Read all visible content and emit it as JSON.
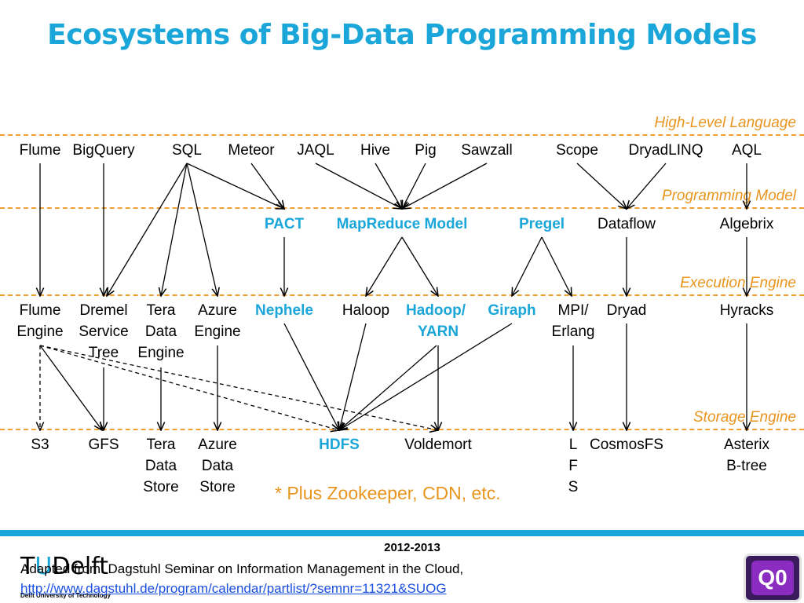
{
  "title": "Ecosystems of Big-Data Programming Models",
  "layers": {
    "high_level": "High-Level Language",
    "programming_model": "Programming Model",
    "execution_engine": "Execution Engine",
    "storage_engine": "Storage Engine"
  },
  "languages": {
    "flume": "Flume",
    "bigquery": "BigQuery",
    "sql": "SQL",
    "meteor": "Meteor",
    "jaql": "JAQL",
    "hive": "Hive",
    "pig": "Pig",
    "sawzall": "Sawzall",
    "scope": "Scope",
    "dryadlinq": "DryadLINQ",
    "aql": "AQL"
  },
  "models": {
    "pact": "PACT",
    "mapreduce": "MapReduce Model",
    "pregel": "Pregel",
    "dataflow": "Dataflow",
    "algebrix": "Algebrix"
  },
  "engines": {
    "flume_engine": [
      "Flume",
      "Engine"
    ],
    "dremel": [
      "Dremel",
      "Service",
      "Tree"
    ],
    "tera_data_engine": [
      "Tera",
      "Data",
      "Engine"
    ],
    "azure_engine": [
      "Azure",
      "Engine"
    ],
    "nephele": "Nephele",
    "haloop": "Haloop",
    "hadoop_yarn": [
      "Hadoop/",
      "YARN"
    ],
    "giraph": "Giraph",
    "mpi_erlang": [
      "MPI/",
      "Erlang"
    ],
    "dryad": "Dryad",
    "hyracks": "Hyracks"
  },
  "storage": {
    "s3": "S3",
    "gfs": "GFS",
    "tera_data_store": [
      "Tera",
      "Data",
      "Store"
    ],
    "azure_data_store": [
      "Azure",
      "Data",
      "Store"
    ],
    "hdfs": "HDFS",
    "voldemort": "Voldemort",
    "lfs": [
      "L",
      "F",
      "S"
    ],
    "cosmosfs": "CosmosFS",
    "asterix": [
      "Asterix",
      "B-tree"
    ]
  },
  "note": "* Plus Zookeeper, CDN, etc.",
  "footer": {
    "year": "2012-2013",
    "logo_t": "T",
    "logo_u": "U",
    "logo_delft": "Delft",
    "logo_subtitle": "Delft University of Technology",
    "credit": "Adapted from: Dagstuhl Seminar on Information Management in the Cloud,",
    "link": "http://www.dagstuhl.de/program/calendar/partlist/?semnr=11321&SUOG",
    "badge": "Q0"
  }
}
